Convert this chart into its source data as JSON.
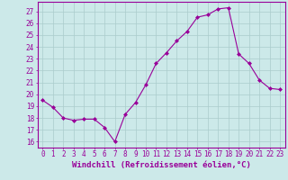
{
  "x": [
    0,
    1,
    2,
    3,
    4,
    5,
    6,
    7,
    8,
    9,
    10,
    11,
    12,
    13,
    14,
    15,
    16,
    17,
    18,
    19,
    20,
    21,
    22,
    23
  ],
  "y": [
    19.5,
    18.9,
    18.0,
    17.8,
    17.9,
    17.9,
    17.2,
    16.0,
    18.3,
    19.3,
    20.8,
    22.6,
    23.5,
    24.5,
    25.3,
    26.5,
    26.7,
    27.2,
    27.3,
    23.4,
    22.6,
    21.2,
    20.5,
    20.4
  ],
  "line_color": "#990099",
  "marker": "D",
  "marker_size": 2.0,
  "xlabel": "Windchill (Refroidissement éolien,°C)",
  "ylabel_ticks": [
    16,
    17,
    18,
    19,
    20,
    21,
    22,
    23,
    24,
    25,
    26,
    27
  ],
  "ylim": [
    15.5,
    27.8
  ],
  "xlim": [
    -0.5,
    23.5
  ],
  "bg_color": "#cce9e9",
  "grid_color": "#aacccc",
  "tick_fontsize": 5.5,
  "xlabel_fontsize": 6.5
}
